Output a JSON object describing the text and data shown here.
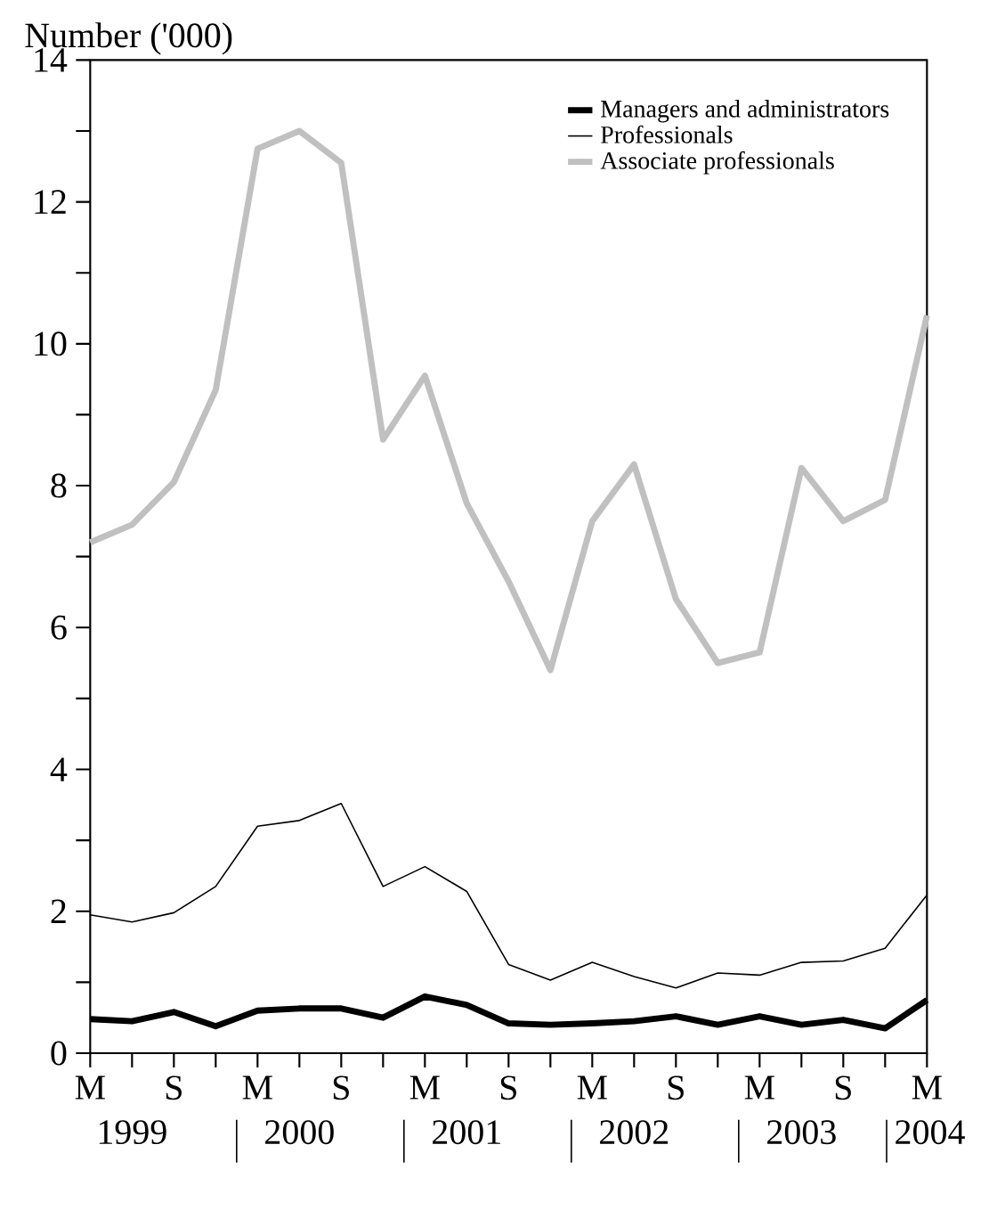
{
  "chart_data": {
    "type": "line",
    "ylabel": "Number ('000)",
    "categories": [
      "M",
      null,
      "S",
      null,
      "M",
      null,
      "S",
      null,
      "M",
      null,
      "S",
      null,
      "M",
      null,
      "S",
      null,
      "M",
      null,
      "S",
      null,
      "M"
    ],
    "series": [
      {
        "name": "Managers and administrators",
        "color": "#000000",
        "values": [
          0.48,
          0.45,
          0.58,
          0.38,
          0.6,
          0.63,
          0.63,
          0.5,
          0.8,
          0.68,
          0.42,
          0.4,
          0.42,
          0.45,
          0.52,
          0.4,
          0.52,
          0.4,
          0.47,
          0.35,
          0.75
        ]
      },
      {
        "name": "Professionals",
        "color": "#000000",
        "values": [
          1.95,
          1.85,
          1.98,
          2.35,
          3.2,
          3.28,
          3.52,
          2.35,
          2.63,
          2.28,
          1.25,
          1.03,
          1.28,
          1.08,
          0.92,
          1.13,
          1.1,
          1.28,
          1.3,
          1.48,
          2.23
        ]
      },
      {
        "name": "Associate professionals",
        "color": "#c0c0c0",
        "values": [
          7.2,
          7.45,
          8.05,
          9.35,
          12.75,
          13.0,
          12.55,
          8.65,
          9.55,
          7.75,
          6.65,
          5.4,
          7.5,
          8.3,
          6.4,
          5.5,
          5.65,
          8.25,
          7.5,
          7.8,
          10.4
        ]
      }
    ],
    "ylim": [
      0,
      14
    ],
    "yticks": [
      0,
      2,
      4,
      6,
      8,
      10,
      12,
      14
    ],
    "legend": "top right",
    "grid": false,
    "marker": "none",
    "line_style": "solid",
    "annotations": [
      "1999",
      "2000",
      "2001",
      "2002",
      "2003",
      "2004"
    ]
  }
}
